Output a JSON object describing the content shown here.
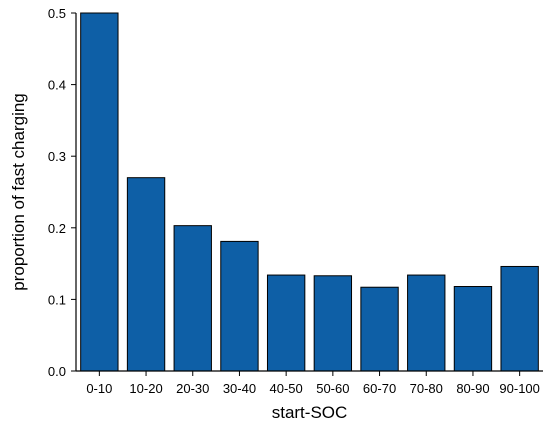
{
  "chart_data": {
    "type": "bar",
    "categories": [
      "0-10",
      "10-20",
      "20-30",
      "30-40",
      "40-50",
      "50-60",
      "60-70",
      "70-80",
      "80-90",
      "90-100"
    ],
    "values": [
      0.5,
      0.27,
      0.203,
      0.181,
      0.134,
      0.133,
      0.117,
      0.134,
      0.118,
      0.146
    ],
    "xlabel": "start-SOC",
    "ylabel": "proportion of fast charging",
    "ylim": [
      0,
      0.5
    ],
    "yticks": [
      "0.0",
      "0.1",
      "0.2",
      "0.3",
      "0.4",
      "0.5"
    ],
    "bar_color": "#0E5FA6",
    "grid": false,
    "legend": "none"
  }
}
